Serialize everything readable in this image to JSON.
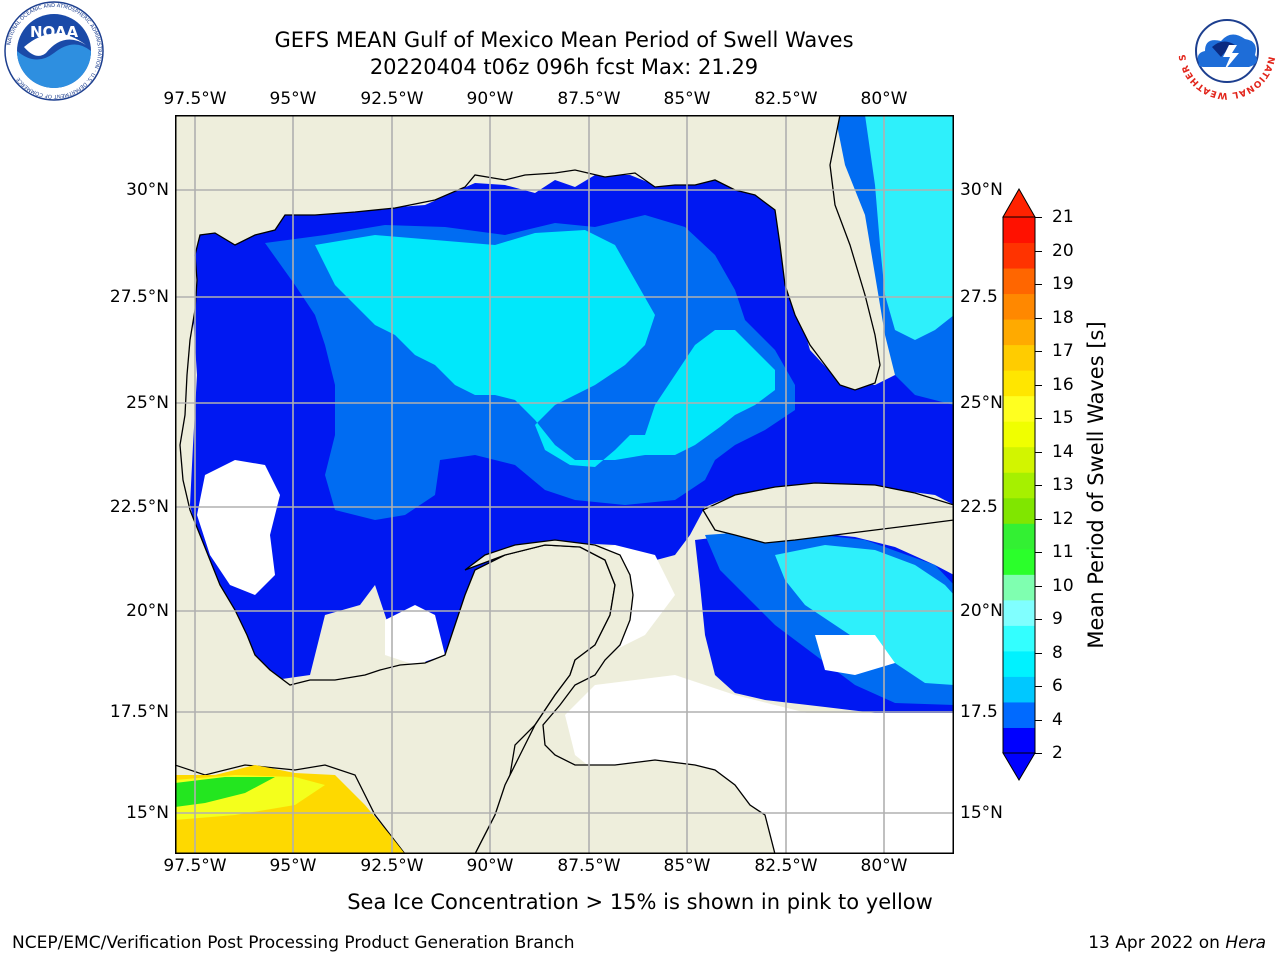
{
  "title": {
    "line1": "GEFS MEAN Gulf of Mexico Mean Period of Swell Waves",
    "line2": "20220404 t06z 096h fcst   Max: 21.29"
  },
  "logos": {
    "left": {
      "icon": "noaa-logo",
      "text": "NOAA",
      "ring_text": "NATIONAL OCEANIC AND ATMOSPHERIC ADMINISTRATION · U.S. DEPARTMENT OF COMMERCE"
    },
    "right": {
      "icon": "nws-logo",
      "ring_text": "NATIONAL WEATHER SERVICE"
    }
  },
  "map": {
    "region": "Gulf of Mexico",
    "lon_labels": [
      "97.5°W",
      "95°W",
      "92.5°W",
      "90°W",
      "87.5°W",
      "85°W",
      "82.5°W",
      "80°W"
    ],
    "lat_labels_left": [
      "30°N",
      "27.5°N",
      "25°N",
      "22.5°N",
      "20°N",
      "17.5°N",
      "15°N"
    ],
    "lat_labels_right": [
      "30°N",
      "27.5",
      "25°N",
      "22.5",
      "20°N",
      "17.5",
      "15°N"
    ],
    "colors": {
      "land": "#eeeedc",
      "ocean_blue": "#0018f2",
      "mid_blue": "#006cf2",
      "light_blue": "#00c4f7",
      "cyan": "#00eefd",
      "bright_cyan": "#33fdfd",
      "ice_green": "#23e61f",
      "ice_yellow": "#f4ff1c",
      "ice_gold": "#fed900",
      "grid": "#b0b0b0"
    }
  },
  "colorbar": {
    "label": "Mean Period of Swell Waves [s]",
    "tick_labels": [
      "2",
      "4",
      "6",
      "8",
      "9",
      "10",
      "11",
      "12",
      "13",
      "14",
      "15",
      "16",
      "17",
      "18",
      "19",
      "20",
      "21"
    ],
    "colors": [
      "#0000ff",
      "#006aff",
      "#00c8ff",
      "#00f2ff",
      "#33ffff",
      "#80ffff",
      "#7fffb0",
      "#2bff2b",
      "#33f033",
      "#80e600",
      "#a6f000",
      "#d2f500",
      "#f0ff00",
      "#ffff20",
      "#ffe600",
      "#ffcc00",
      "#ffaa00",
      "#ff8800",
      "#ff6600",
      "#ff3300",
      "#ff1100"
    ],
    "under_color": "#0000ff",
    "over_color": "#ff2200"
  },
  "note": "Sea Ice Concentration > 15% is shown in pink to yellow",
  "footer": {
    "left": "NCEP/EMC/Verification Post Processing Product Generation Branch",
    "right_prefix": "13 Apr 2022 on ",
    "right_host": "Hera"
  }
}
